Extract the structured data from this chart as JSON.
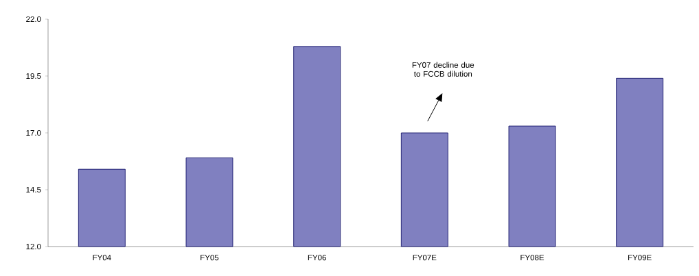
{
  "chart_data": {
    "type": "bar",
    "categories": [
      "FY04",
      "FY05",
      "FY06",
      "FY07E",
      "FY08E",
      "FY09E"
    ],
    "values": [
      15.4,
      15.9,
      20.8,
      17.0,
      17.3,
      19.4
    ],
    "color": "#8080c0",
    "ylim": [
      12.0,
      22.0
    ],
    "yticks": [
      {
        "value": 12.0,
        "label": "12.0"
      },
      {
        "value": 14.5,
        "label": "14.5"
      },
      {
        "value": 17.0,
        "label": "17.0"
      },
      {
        "value": 19.5,
        "label": "19.5"
      },
      {
        "value": 22.0,
        "label": "22.0"
      }
    ],
    "grid": false,
    "annotations": [
      "FY07 decline due to FCCB dilution"
    ]
  }
}
